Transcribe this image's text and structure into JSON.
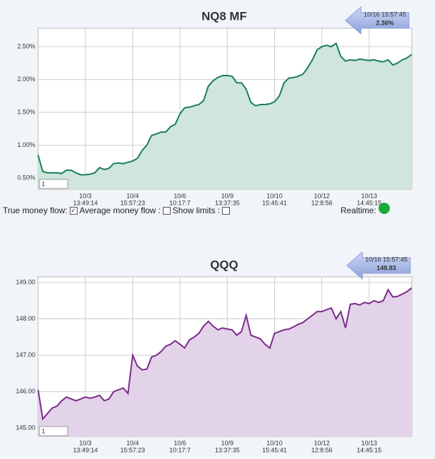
{
  "chart_data": [
    {
      "type": "area",
      "title": "NQ8 MF",
      "categories": [
        null,
        null,
        null,
        null,
        null,
        null,
        null,
        null,
        null,
        null,
        "10/3",
        null,
        null,
        null,
        null,
        null,
        null,
        null,
        null,
        null,
        "10/4",
        null,
        null,
        null,
        null,
        null,
        null,
        null,
        null,
        null,
        "10/6",
        null,
        null,
        null,
        null,
        null,
        null,
        null,
        null,
        null,
        "10/9",
        null,
        null,
        null,
        null,
        null,
        null,
        null,
        null,
        null,
        "10/10",
        null,
        null,
        null,
        null,
        null,
        null,
        null,
        null,
        null,
        "10/12",
        null,
        null,
        null,
        null,
        null,
        null,
        null,
        null,
        null,
        "10/13",
        null,
        null,
        null,
        null,
        null,
        null,
        null,
        null,
        null
      ],
      "category_times": [
        null,
        null,
        null,
        null,
        null,
        null,
        null,
        null,
        null,
        null,
        "13:49:14",
        null,
        null,
        null,
        null,
        null,
        null,
        null,
        null,
        null,
        "15:57:23",
        null,
        null,
        null,
        null,
        null,
        null,
        null,
        null,
        null,
        "10:17:7",
        null,
        null,
        null,
        null,
        null,
        null,
        null,
        null,
        null,
        "13:37:35",
        null,
        null,
        null,
        null,
        null,
        null,
        null,
        null,
        null,
        "15:45:41",
        null,
        null,
        null,
        null,
        null,
        null,
        null,
        null,
        null,
        "12:8:56",
        null,
        null,
        null,
        null,
        null,
        null,
        null,
        null,
        null,
        "14:45:15",
        null,
        null,
        null,
        null,
        null,
        null,
        null,
        null,
        null
      ],
      "values": [
        0.85,
        0.6,
        0.58,
        0.58,
        0.58,
        0.57,
        0.62,
        0.62,
        0.58,
        0.55,
        0.55,
        0.56,
        0.58,
        0.66,
        0.63,
        0.65,
        0.72,
        0.73,
        0.72,
        0.74,
        0.76,
        0.8,
        0.92,
        1.0,
        1.15,
        1.17,
        1.2,
        1.2,
        1.28,
        1.32,
        1.48,
        1.57,
        1.58,
        1.6,
        1.62,
        1.68,
        1.9,
        1.98,
        2.03,
        2.06,
        2.06,
        2.05,
        1.95,
        1.95,
        1.85,
        1.65,
        1.6,
        1.62,
        1.62,
        1.63,
        1.66,
        1.75,
        1.95,
        2.02,
        2.03,
        2.05,
        2.08,
        2.18,
        2.3,
        2.45,
        2.5,
        2.52,
        2.5,
        2.55,
        2.35,
        2.28,
        2.3,
        2.29,
        2.31,
        2.3,
        2.29,
        2.3,
        2.28,
        2.27,
        2.3,
        2.22,
        2.25,
        2.3,
        2.33,
        2.38
      ],
      "color": "#1a7f5a",
      "fill": "#cfe5dd",
      "ylim": [
        0.33,
        2.78
      ],
      "yticks": [
        {
          "value": 0.5,
          "label": "0.50%"
        },
        {
          "value": 1,
          "label": "1.00%"
        },
        {
          "value": 1.5,
          "label": "1.50%"
        },
        {
          "value": 2,
          "label": "2.00%"
        },
        {
          "value": 2.5,
          "label": "2.50%"
        }
      ],
      "grid": true,
      "callout_time": "10/16 15:57:45",
      "callout_value": "2.36%",
      "input_value": "1"
    },
    {
      "type": "area",
      "title": "QQQ",
      "categories": [
        null,
        null,
        null,
        null,
        null,
        null,
        null,
        null,
        null,
        null,
        "10/3",
        null,
        null,
        null,
        null,
        null,
        null,
        null,
        null,
        null,
        "10/4",
        null,
        null,
        null,
        null,
        null,
        null,
        null,
        null,
        null,
        "10/6",
        null,
        null,
        null,
        null,
        null,
        null,
        null,
        null,
        null,
        "10/9",
        null,
        null,
        null,
        null,
        null,
        null,
        null,
        null,
        null,
        "10/10",
        null,
        null,
        null,
        null,
        null,
        null,
        null,
        null,
        null,
        "10/12",
        null,
        null,
        null,
        null,
        null,
        null,
        null,
        null,
        null,
        "10/13",
        null,
        null,
        null,
        null,
        null,
        null,
        null,
        null,
        null
      ],
      "category_times": [
        null,
        null,
        null,
        null,
        null,
        null,
        null,
        null,
        null,
        null,
        "13:49:14",
        null,
        null,
        null,
        null,
        null,
        null,
        null,
        null,
        null,
        "15:57:23",
        null,
        null,
        null,
        null,
        null,
        null,
        null,
        null,
        null,
        "10:17:7",
        null,
        null,
        null,
        null,
        null,
        null,
        null,
        null,
        null,
        "13:37:35",
        null,
        null,
        null,
        null,
        null,
        null,
        null,
        null,
        null,
        "15:45:41",
        null,
        null,
        null,
        null,
        null,
        null,
        null,
        null,
        null,
        "12:8:56",
        null,
        null,
        null,
        null,
        null,
        null,
        null,
        null,
        null,
        "14:45:15",
        null,
        null,
        null,
        null,
        null,
        null,
        null,
        null,
        null
      ],
      "values": [
        146.05,
        145.25,
        145.4,
        145.55,
        145.6,
        145.75,
        145.85,
        145.8,
        145.75,
        145.8,
        145.85,
        145.82,
        145.85,
        145.9,
        145.75,
        145.8,
        146.0,
        146.05,
        146.1,
        145.95,
        147.0,
        146.7,
        146.6,
        146.62,
        146.95,
        147.0,
        147.1,
        147.25,
        147.3,
        147.4,
        147.3,
        147.2,
        147.42,
        147.5,
        147.6,
        147.8,
        147.93,
        147.8,
        147.7,
        147.75,
        147.72,
        147.7,
        147.55,
        147.65,
        148.1,
        147.55,
        147.5,
        147.45,
        147.3,
        147.2,
        147.6,
        147.65,
        147.7,
        147.72,
        147.78,
        147.85,
        147.9,
        148.0,
        148.1,
        148.2,
        148.2,
        148.25,
        148.3,
        148.0,
        148.2,
        147.75,
        148.4,
        148.42,
        148.38,
        148.45,
        148.42,
        148.5,
        148.45,
        148.5,
        148.8,
        148.6,
        148.62,
        148.68,
        148.75,
        148.85
      ],
      "color": "#7b2a8a",
      "fill": "#e2d3e8",
      "ylim": [
        144.77,
        149.155
      ],
      "yticks": [
        {
          "value": 145,
          "label": "145.00"
        },
        {
          "value": 146,
          "label": "146.00"
        },
        {
          "value": 147,
          "label": "147.00"
        },
        {
          "value": 148,
          "label": "148.00"
        },
        {
          "value": 149,
          "label": "149.00"
        }
      ],
      "grid": true,
      "callout_time": "10/16 15:57:45",
      "callout_value": "148.83",
      "input_value": "1"
    }
  ],
  "controls": {
    "labels": [
      "True money flow:",
      "Average money flow :",
      "Show limits :"
    ],
    "checked": [
      true,
      false,
      false
    ],
    "realtime_label": "Realtime:"
  }
}
